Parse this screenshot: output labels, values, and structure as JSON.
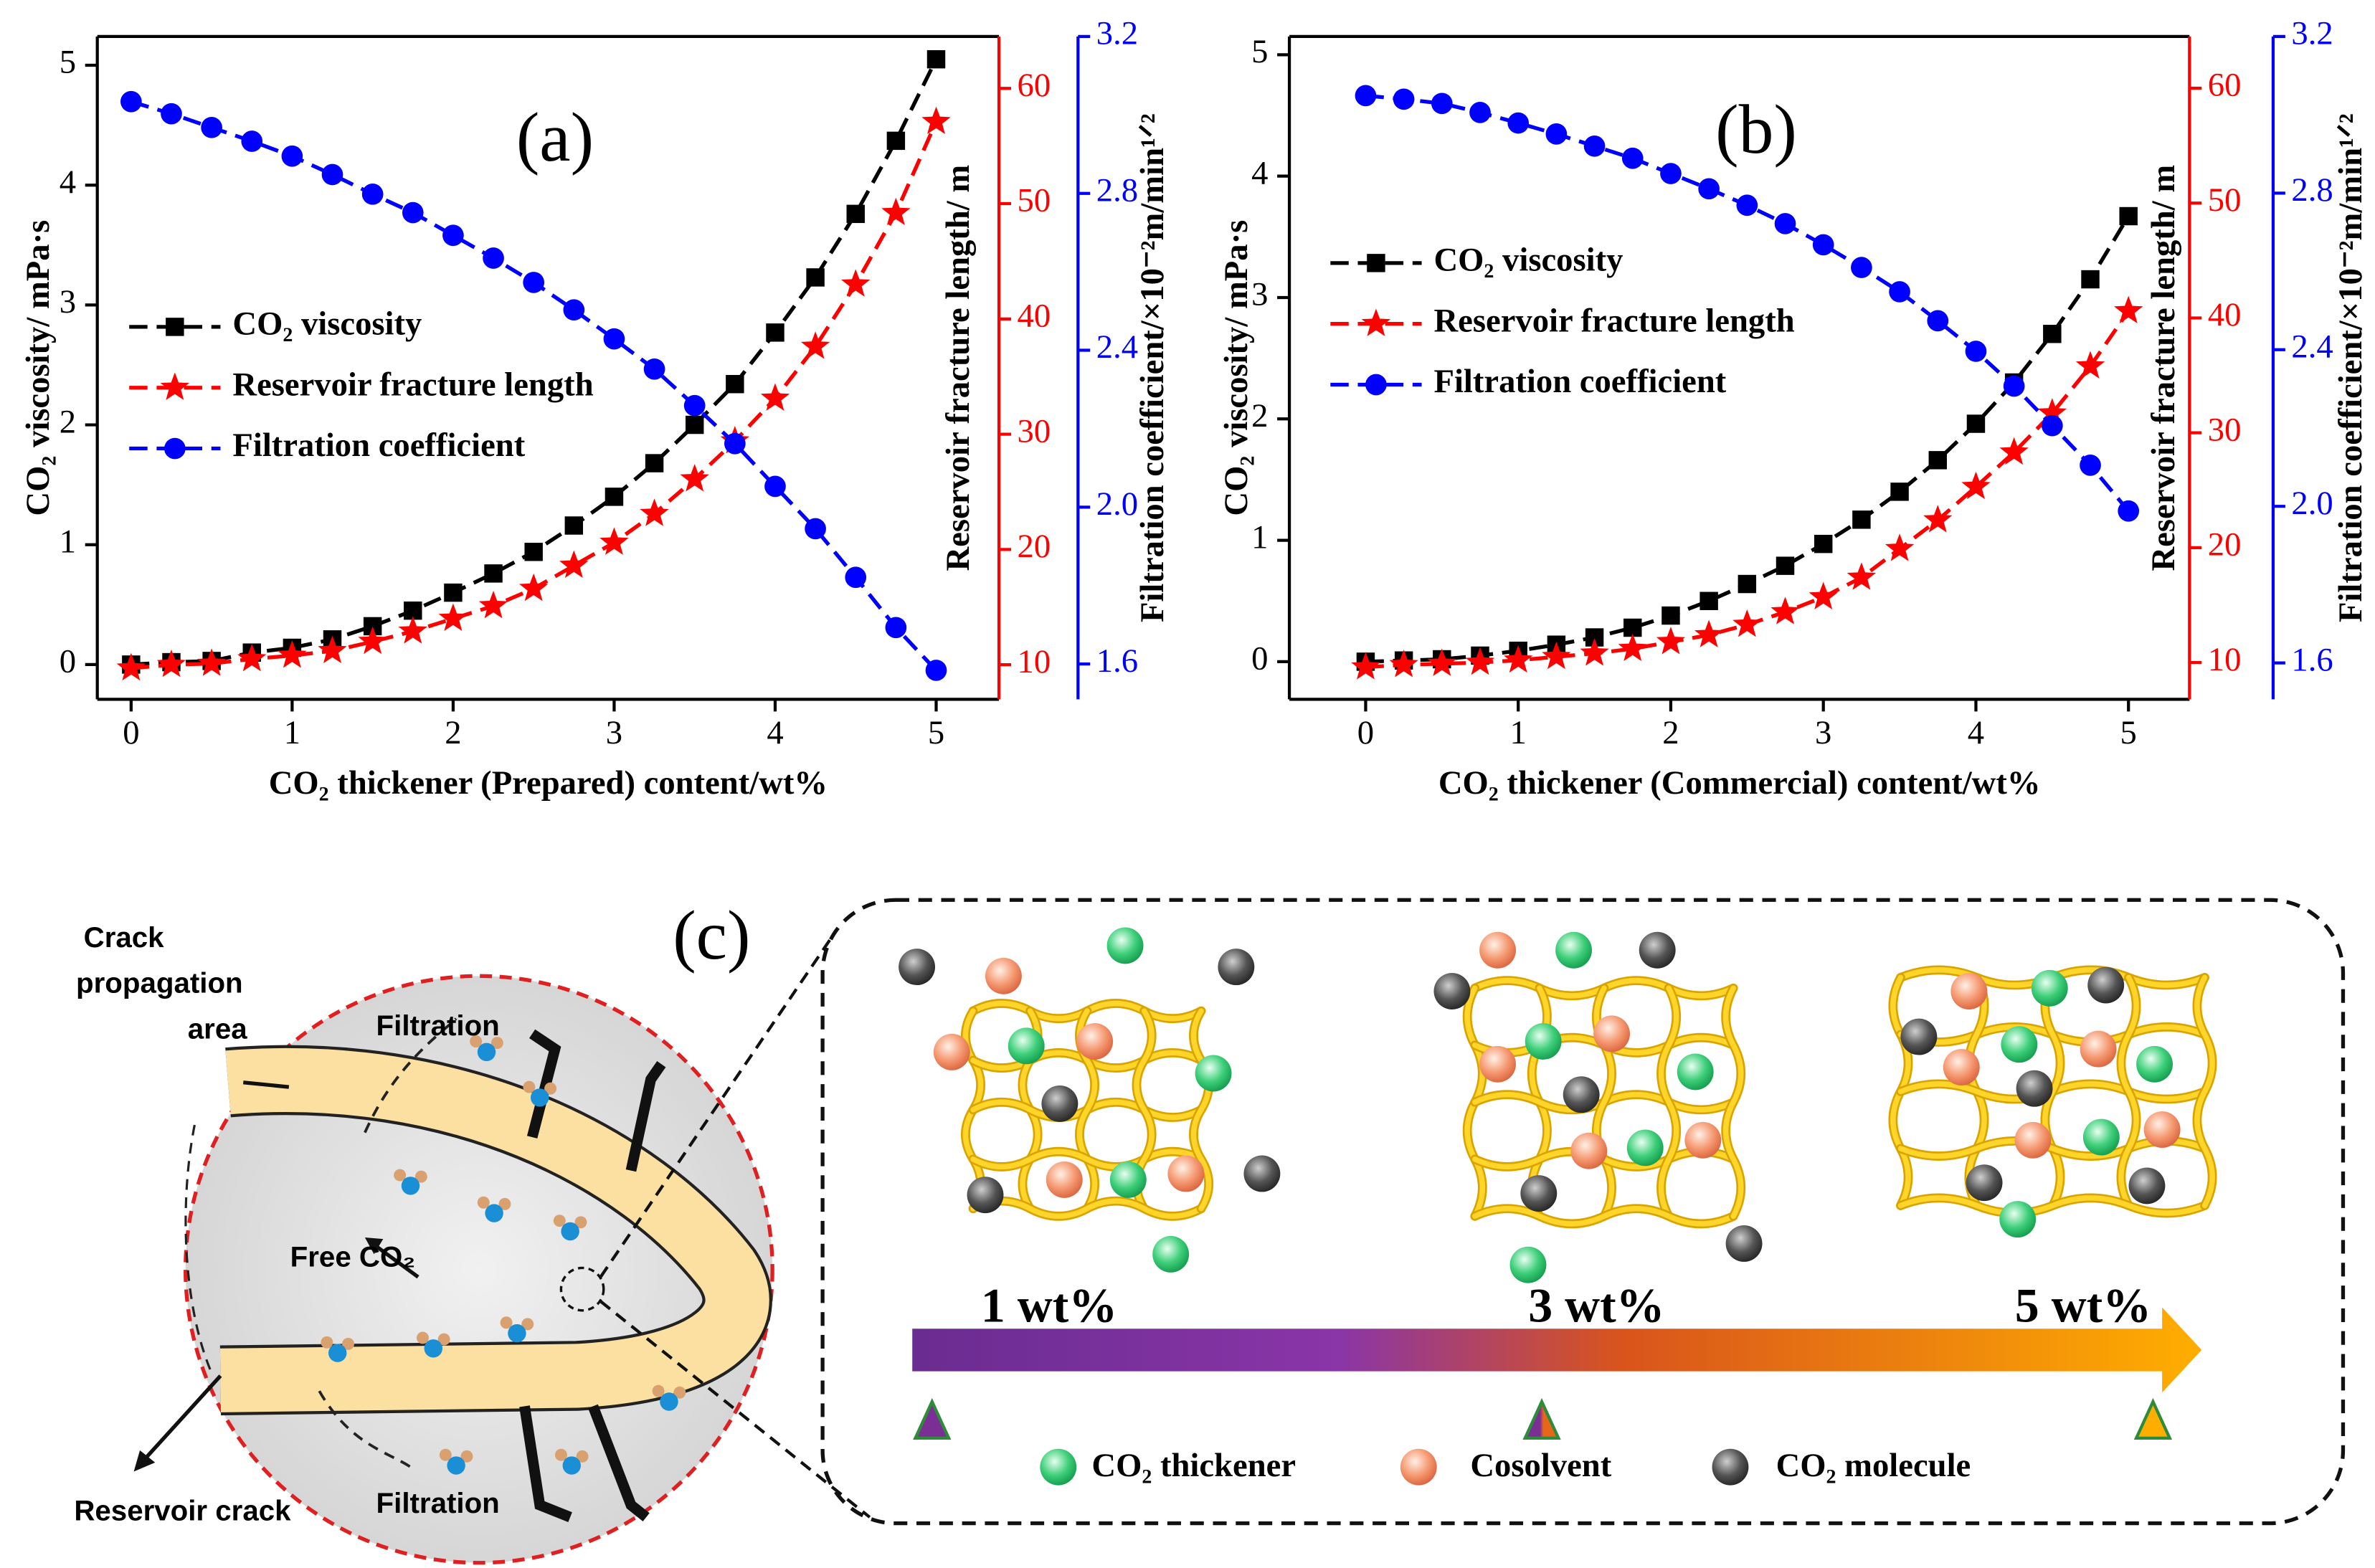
{
  "chart_data": [
    {
      "type": "line",
      "annotation": "(a)",
      "x_label": "CO₂ thickener (Prepared) content/wt%",
      "y_label": "CO₂ viscosity/ mPa·s",
      "y2_label": "Reservoir fracture length/ m",
      "y3_label": "Filtration coefficient/×10⁻²m/min¹ᐟ²",
      "x": [
        0,
        0.25,
        0.5,
        0.75,
        1,
        1.25,
        1.5,
        1.75,
        2,
        2.25,
        2.5,
        2.75,
        3,
        3.25,
        3.5,
        3.75,
        4,
        4.25,
        4.5,
        4.75,
        5
      ],
      "series": [
        {
          "name": "CO₂ viscosity",
          "color": "#000000",
          "marker": "square",
          "axis": "y",
          "values": [
            0,
            0.02,
            0.03,
            0.1,
            0.14,
            0.21,
            0.32,
            0.45,
            0.6,
            0.76,
            0.94,
            1.16,
            1.4,
            1.68,
            2.0,
            2.34,
            2.77,
            3.23,
            3.76,
            4.37,
            5.05
          ]
        },
        {
          "name": "Reservoir fracture length",
          "color": "#ff0000",
          "marker": "star",
          "axis": "y2",
          "values": [
            9.7,
            10,
            10.1,
            10.5,
            10.8,
            11.2,
            12,
            12.9,
            14,
            15.1,
            16.6,
            18.6,
            20.6,
            23.1,
            26.1,
            29.4,
            33.1,
            37.6,
            43,
            49.2,
            57.1
          ]
        },
        {
          "name": "Filtration coefficient",
          "color": "#0000ff",
          "marker": "circle",
          "axis": "y3",
          "values": [
            3.034,
            3.003,
            2.968,
            2.933,
            2.895,
            2.848,
            2.798,
            2.751,
            2.693,
            2.635,
            2.573,
            2.503,
            2.429,
            2.352,
            2.259,
            2.162,
            2.053,
            1.945,
            1.821,
            1.693,
            1.584
          ]
        }
      ],
      "xlim": [
        -0.21,
        5.39
      ],
      "xticks": [
        0,
        1,
        2,
        3,
        4,
        5
      ],
      "ylim": [
        -0.29,
        5.24
      ],
      "yticks": [
        0,
        1,
        2,
        3,
        4,
        5
      ],
      "y2lim": [
        7,
        64.5
      ],
      "y2ticks": [
        10,
        20,
        30,
        40,
        50,
        60
      ],
      "y2_color": "#ff0000",
      "y3lim": [
        1.51,
        3.2
      ],
      "y3ticks": [
        1.6,
        {
          "value": 2,
          "label": "2.0"
        },
        2.4,
        2.8,
        3.2
      ],
      "y3_color": "#0000ff"
    },
    {
      "type": "line",
      "annotation": "(b)",
      "x_label": "CO₂ thickener (Commercial) content/wt%",
      "y_label": "CO₂ viscosity/ mPa·s",
      "y2_label": "Reservoir fracture length/ m",
      "y3_label": "Filtration coefficient/×10⁻²m/min¹ᐟ²",
      "x": [
        0,
        0.25,
        0.5,
        0.75,
        1,
        1.25,
        1.5,
        1.75,
        2,
        2.25,
        2.5,
        2.75,
        3,
        3.25,
        3.5,
        3.75,
        4,
        4.25,
        4.5,
        4.75,
        5
      ],
      "series": [
        {
          "name": "CO₂ viscosity",
          "color": "#000000",
          "marker": "square",
          "axis": "y",
          "values": [
            0,
            0.01,
            0.02,
            0.05,
            0.09,
            0.14,
            0.2,
            0.28,
            0.38,
            0.5,
            0.64,
            0.79,
            0.97,
            1.17,
            1.4,
            1.66,
            1.96,
            2.3,
            2.7,
            3.15,
            3.67
          ]
        },
        {
          "name": "Reservoir fracture length",
          "color": "#ff0000",
          "marker": "star",
          "axis": "y2",
          "values": [
            9.6,
            9.8,
            9.9,
            10,
            10.2,
            10.5,
            10.8,
            11.2,
            11.8,
            12.4,
            13.3,
            14.4,
            15.7,
            17.4,
            19.9,
            22.4,
            25.3,
            28.3,
            31.7,
            35.8,
            40.6
          ]
        },
        {
          "name": "Filtration coefficient",
          "color": "#0000ff",
          "marker": "circle",
          "axis": "y3",
          "values": [
            3.049,
            3.04,
            3.029,
            3.006,
            2.979,
            2.951,
            2.92,
            2.889,
            2.85,
            2.811,
            2.769,
            2.722,
            2.668,
            2.61,
            2.548,
            2.474,
            2.396,
            2.307,
            2.206,
            2.105,
            1.988
          ]
        }
      ],
      "xlim": [
        -0.5,
        5.4
      ],
      "xticks": [
        0,
        1,
        2,
        3,
        4,
        5
      ],
      "ylim": [
        -0.31,
        5.15
      ],
      "yticks": [
        0,
        1,
        2,
        3,
        4,
        5
      ],
      "y2lim": [
        6.8,
        64.5
      ],
      "y2ticks": [
        10,
        20,
        30,
        40,
        50,
        60
      ],
      "y2_color": "#ff0000",
      "y3lim": [
        1.507,
        3.2
      ],
      "y3ticks": [
        1.6,
        {
          "value": 2,
          "label": "2.0"
        },
        2.4,
        2.8,
        3.2
      ],
      "y3_color": "#0000ff"
    }
  ],
  "diagram": {
    "panel_label": "(c)",
    "crack_label": [
      "Crack",
      "propagation",
      "area"
    ],
    "filtration_top": "Filtration",
    "filtration_bottom": "Filtration",
    "free_co2": "Free CO₂",
    "reservoir_crack": "Reservoir crack",
    "concentrations": [
      "1 wt%",
      "3 wt%",
      "5 wt%"
    ],
    "legend": [
      "CO₂ thickener",
      "Cosolvent",
      "CO₂ molecule"
    ]
  }
}
